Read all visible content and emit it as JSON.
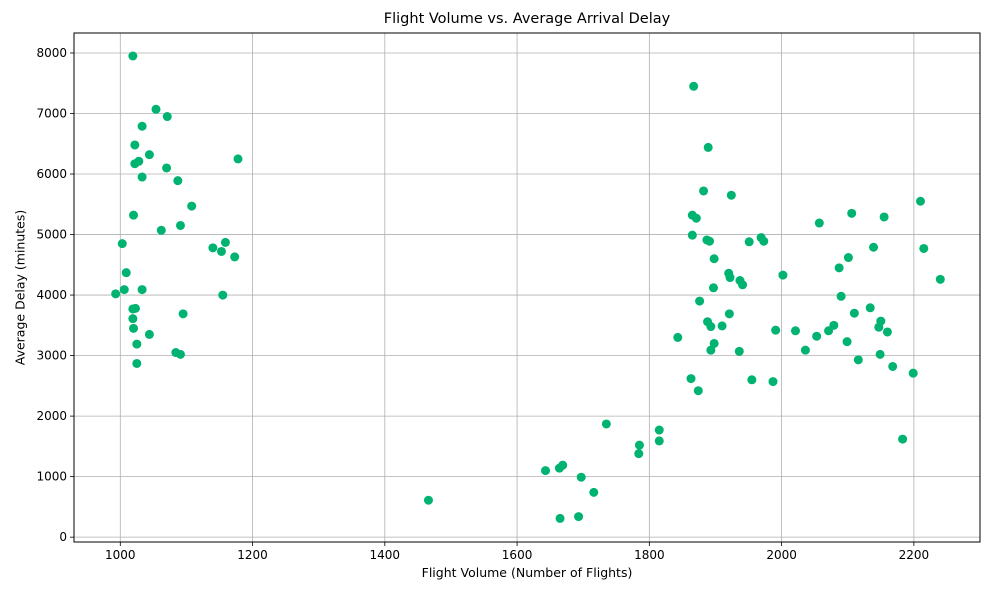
{
  "chart_data": {
    "type": "scatter",
    "title": "Flight Volume vs. Average Arrival Delay",
    "xlabel": "Flight Volume (Number of Flights)",
    "ylabel": "Average Delay (minutes)",
    "xlim": [
      930,
      2300
    ],
    "ylim": [
      -80,
      8330
    ],
    "xticks": [
      1000,
      1200,
      1400,
      1600,
      1800,
      2000,
      2200
    ],
    "yticks": [
      0,
      1000,
      2000,
      3000,
      4000,
      5000,
      6000,
      7000,
      8000
    ],
    "grid": true,
    "colors": {
      "point": "#00b371",
      "grid": "#b0b0b0",
      "axis": "#000000"
    },
    "series": [
      {
        "points": [
          [
            1019,
            7950
          ],
          [
            1054,
            7070
          ],
          [
            1071,
            6950
          ],
          [
            1033,
            6790
          ],
          [
            1022,
            6480
          ],
          [
            1044,
            6320
          ],
          [
            1028,
            6210
          ],
          [
            1022,
            6170
          ],
          [
            1070,
            6100
          ],
          [
            1033,
            5950
          ],
          [
            1087,
            5890
          ],
          [
            1020,
            5320
          ],
          [
            1108,
            5470
          ],
          [
            1091,
            5150
          ],
          [
            1062,
            5070
          ],
          [
            1178,
            6250
          ],
          [
            1003,
            4850
          ],
          [
            1159,
            4870
          ],
          [
            1140,
            4780
          ],
          [
            1153,
            4720
          ],
          [
            1173,
            4630
          ],
          [
            1009,
            4370
          ],
          [
            993,
            4020
          ],
          [
            1006,
            4090
          ],
          [
            1033,
            4090
          ],
          [
            1155,
            4000
          ],
          [
            1019,
            3770
          ],
          [
            1023,
            3780
          ],
          [
            1019,
            3610
          ],
          [
            1095,
            3690
          ],
          [
            1020,
            3450
          ],
          [
            1044,
            3350
          ],
          [
            1025,
            3190
          ],
          [
            1084,
            3050
          ],
          [
            1091,
            3020
          ],
          [
            1025,
            2870
          ],
          [
            1466,
            610
          ],
          [
            1643,
            1100
          ],
          [
            1664,
            1140
          ],
          [
            1669,
            1190
          ],
          [
            1697,
            990
          ],
          [
            1665,
            310
          ],
          [
            1693,
            340
          ],
          [
            1716,
            740
          ],
          [
            1735,
            1870
          ],
          [
            1785,
            1520
          ],
          [
            1784,
            1380
          ],
          [
            1815,
            1770
          ],
          [
            1815,
            1590
          ],
          [
            1843,
            3300
          ],
          [
            1867,
            7450
          ],
          [
            1889,
            6440
          ],
          [
            1882,
            5720
          ],
          [
            1865,
            5320
          ],
          [
            1871,
            5270
          ],
          [
            1924,
            5650
          ],
          [
            1865,
            4990
          ],
          [
            1887,
            4910
          ],
          [
            1891,
            4890
          ],
          [
            1898,
            4600
          ],
          [
            1951,
            4880
          ],
          [
            1969,
            4950
          ],
          [
            1973,
            4890
          ],
          [
            1920,
            4360
          ],
          [
            1922,
            4290
          ],
          [
            1937,
            4240
          ],
          [
            1941,
            4170
          ],
          [
            1897,
            4120
          ],
          [
            1876,
            3900
          ],
          [
            1921,
            3690
          ],
          [
            1888,
            3560
          ],
          [
            1893,
            3480
          ],
          [
            1910,
            3490
          ],
          [
            1936,
            3070
          ],
          [
            1893,
            3090
          ],
          [
            1898,
            3200
          ],
          [
            1863,
            2620
          ],
          [
            1874,
            2420
          ],
          [
            1955,
            2600
          ],
          [
            1987,
            2570
          ],
          [
            2002,
            4330
          ],
          [
            1991,
            3420
          ],
          [
            2021,
            3410
          ],
          [
            2036,
            3090
          ],
          [
            2057,
            5190
          ],
          [
            2106,
            5350
          ],
          [
            2155,
            5290
          ],
          [
            2210,
            5550
          ],
          [
            2087,
            4450
          ],
          [
            2101,
            4620
          ],
          [
            2139,
            4790
          ],
          [
            2215,
            4770
          ],
          [
            2240,
            4260
          ],
          [
            2090,
            3980
          ],
          [
            2134,
            3790
          ],
          [
            2110,
            3700
          ],
          [
            2079,
            3500
          ],
          [
            2071,
            3410
          ],
          [
            2053,
            3320
          ],
          [
            2099,
            3230
          ],
          [
            2147,
            3470
          ],
          [
            2150,
            3570
          ],
          [
            2160,
            3390
          ],
          [
            2149,
            3020
          ],
          [
            2116,
            2930
          ],
          [
            2168,
            2820
          ],
          [
            2199,
            2710
          ],
          [
            2183,
            1620
          ]
        ]
      }
    ]
  }
}
